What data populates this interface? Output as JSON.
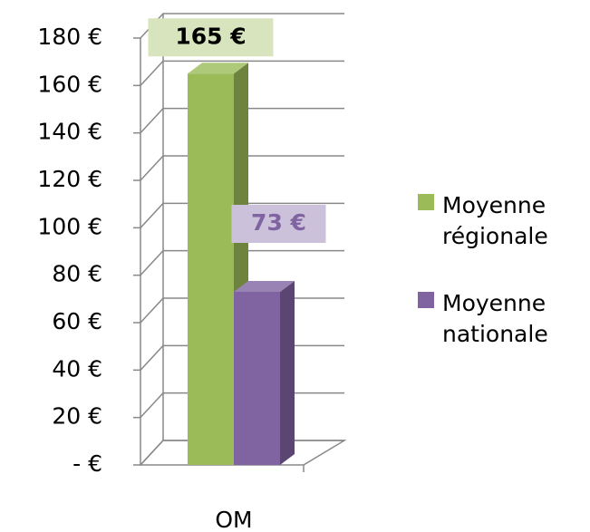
{
  "chart_data": {
    "type": "bar3d",
    "categories": [
      "OM"
    ],
    "series": [
      {
        "name": "Moyenne régionale",
        "color": "#9bbb59",
        "values": [
          165
        ],
        "value_labels": [
          "165 €"
        ]
      },
      {
        "name": "Moyenne nationale",
        "color": "#8064a2",
        "values": [
          73
        ],
        "value_labels": [
          "73 €"
        ]
      }
    ],
    "ylim": [
      0,
      180
    ],
    "yticks": [
      {
        "value": 0,
        "label": "-  €"
      },
      {
        "value": 20,
        "label": "20 €"
      },
      {
        "value": 40,
        "label": "40 €"
      },
      {
        "value": 60,
        "label": "60 €"
      },
      {
        "value": 80,
        "label": "80 €"
      },
      {
        "value": 100,
        "label": "100 €"
      },
      {
        "value": 120,
        "label": "120 €"
      },
      {
        "value": 140,
        "label": "140 €"
      },
      {
        "value": 160,
        "label": "160 €"
      },
      {
        "value": 180,
        "label": "180 €"
      }
    ],
    "grid": true,
    "legend": "right"
  }
}
